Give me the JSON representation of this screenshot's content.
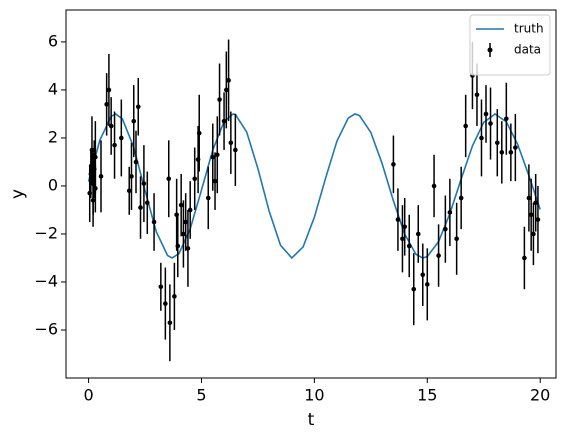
{
  "chart_data": {
    "type": "errorbar",
    "xlabel": "t",
    "ylabel": "y",
    "xlim": [
      -1,
      20.7
    ],
    "ylim": [
      -8,
      7.33
    ],
    "xticks": [
      0,
      5,
      10,
      15,
      20
    ],
    "yticks": [
      {
        "value": -6,
        "label": "−6"
      },
      {
        "value": -4,
        "label": "−4"
      },
      {
        "value": -2,
        "label": "−2"
      },
      0,
      2,
      4,
      6
    ],
    "legend": "upper right",
    "series": [
      {
        "name": "truth",
        "type": "line",
        "color": "#1f77b4",
        "x": [
          0,
          0.5,
          1,
          1.2,
          1.5,
          2,
          2.5,
          3,
          3.5,
          3.7,
          4,
          4.5,
          5,
          5.5,
          6,
          6.4,
          6.5,
          7,
          7.5,
          8,
          8.5,
          9,
          9.5,
          10,
          10.5,
          11,
          11.5,
          11.8,
          12,
          12.5,
          13,
          13.5,
          14,
          14.5,
          14.8,
          15,
          15.5,
          16,
          16.5,
          17,
          17.5,
          18,
          18.5,
          19,
          19.5,
          20
        ],
        "values": [
          0.18,
          1.91,
          2.9,
          3,
          2.79,
          1.61,
          -0.19,
          -1.91,
          -2.9,
          -3,
          -2.82,
          -1.79,
          -0.17,
          1.5,
          2.68,
          3,
          2.98,
          2.25,
          0.72,
          -1.06,
          -2.47,
          -3,
          -2.54,
          -1.3,
          0.34,
          1.87,
          2.83,
          3,
          2.93,
          2.23,
          0.93,
          -0.62,
          -2.01,
          -2.85,
          -3,
          -2.94,
          -2.32,
          -1.15,
          0.29,
          1.67,
          2.65,
          3,
          2.67,
          1.74,
          0.43,
          -0.98
        ]
      },
      {
        "name": "data",
        "type": "errorbar",
        "color": "#000000",
        "x": [
          0.05,
          0.1,
          0.15,
          0.2,
          0.2,
          0.25,
          0.3,
          0.3,
          0.55,
          0.8,
          0.9,
          1.0,
          1.15,
          1.45,
          1.8,
          1.9,
          2.0,
          2.1,
          2.2,
          2.3,
          2.45,
          2.6,
          2.9,
          3.2,
          3.4,
          3.55,
          3.6,
          3.8,
          3.9,
          3.95,
          4.1,
          4.2,
          4.3,
          4.4,
          4.5,
          4.7,
          4.85,
          4.9,
          5.3,
          5.5,
          5.6,
          5.7,
          5.8,
          6.0,
          6.1,
          6.2,
          6.3,
          6.5,
          13.5,
          13.7,
          13.9,
          14.0,
          14.2,
          14.4,
          14.6,
          14.8,
          15.0,
          15.3,
          15.5,
          15.8,
          16.0,
          16.3,
          16.5,
          16.7,
          17.0,
          17.2,
          17.4,
          17.6,
          17.8,
          18.1,
          18.3,
          18.5,
          18.7,
          18.9,
          19.3,
          19.5,
          19.6,
          19.7,
          19.8,
          19.9
        ],
        "values": [
          -0.3,
          0.5,
          1.5,
          -0.6,
          0.1,
          0.7,
          -0.1,
          1.2,
          0.4,
          3.4,
          4.0,
          2.5,
          1.7,
          2.0,
          -0.2,
          0.4,
          2.7,
          1.0,
          3.3,
          -0.9,
          0.1,
          -0.7,
          -1.5,
          -4.2,
          -4.9,
          0.3,
          -5.7,
          -4.6,
          -1.2,
          -2.5,
          -0.8,
          -2.0,
          -1.5,
          -2.6,
          -1.0,
          0.3,
          1.1,
          2.2,
          -0.5,
          1.2,
          0.2,
          1.3,
          3.6,
          2.7,
          4.0,
          4.4,
          1.8,
          1.5,
          0.9,
          -1.4,
          -2.2,
          -1.7,
          -2.5,
          -4.3,
          -2.0,
          -3.7,
          -4.1,
          0.0,
          -2.9,
          -1.8,
          -1.1,
          -2.2,
          -0.5,
          2.5,
          4.6,
          3.8,
          2.0,
          3.0,
          2.6,
          1.8,
          1.4,
          2.8,
          1.4,
          1.6,
          -3.0,
          -0.5,
          -1.2,
          -2.0,
          -0.7,
          -1.4
        ],
        "errors": [
          1.2,
          1.0,
          1.4,
          1.1,
          1.3,
          1.2,
          1.0,
          1.5,
          1.5,
          1.3,
          1.5,
          1.2,
          1.4,
          1.6,
          1.0,
          1.4,
          1.5,
          1.3,
          1.2,
          1.3,
          1.6,
          1.3,
          1.2,
          1.0,
          1.5,
          1.6,
          1.6,
          1.4,
          1.5,
          1.3,
          1.3,
          1.4,
          1.2,
          1.6,
          1.2,
          1.3,
          1.4,
          1.6,
          1.3,
          1.4,
          1.2,
          1.6,
          1.5,
          1.2,
          1.6,
          1.7,
          1.3,
          1.5,
          1.2,
          1.3,
          1.4,
          1.2,
          1.3,
          1.5,
          1.2,
          1.3,
          1.5,
          1.3,
          1.3,
          1.4,
          1.4,
          1.5,
          1.3,
          1.3,
          1.4,
          1.3,
          1.6,
          1.2,
          1.5,
          1.4,
          1.3,
          1.5,
          1.2,
          1.4,
          1.3,
          1.4,
          1.5,
          1.3,
          1.2,
          1.4
        ]
      }
    ]
  }
}
